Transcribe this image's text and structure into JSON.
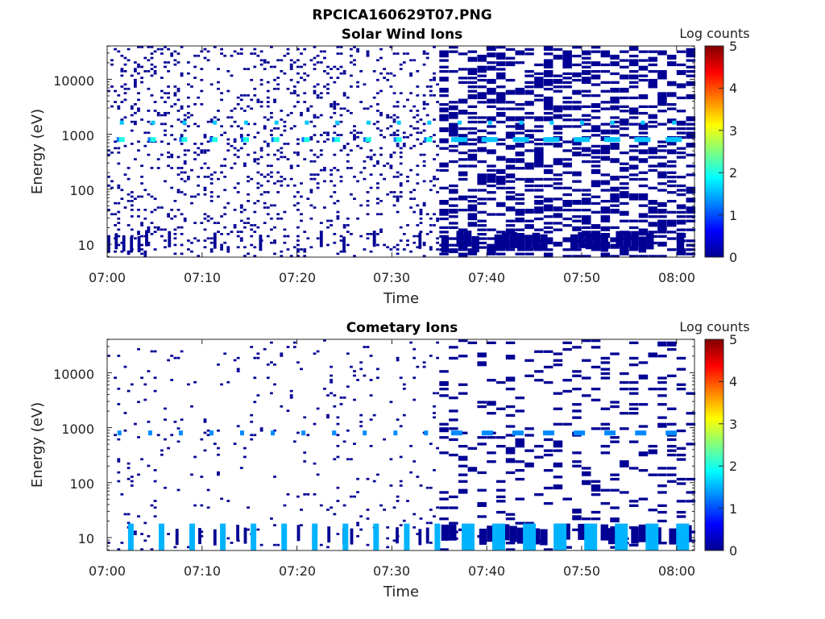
{
  "figure": {
    "filename": "RPCICA160629T07.PNG"
  },
  "colorbar": {
    "label": "Log counts",
    "ticks": [
      "0",
      "1",
      "2",
      "3",
      "4",
      "5"
    ],
    "range": [
      0,
      5
    ],
    "colormap": "jet"
  },
  "chart_data": [
    {
      "type": "heatmap",
      "title": "Solar Wind Ions",
      "xlabel": "Time",
      "ylabel": "Energy (eV)",
      "x_ticks": [
        "07:00",
        "07:10",
        "07:20",
        "07:30",
        "07:40",
        "07:50",
        "08:00"
      ],
      "y_ticks": [
        "10",
        "100",
        "1000",
        "10000"
      ],
      "xlim": [
        "07:00",
        "08:02"
      ],
      "ylim": [
        6,
        40000
      ],
      "yscale": "log",
      "colorbar_label": "Log counts",
      "color_range": [
        0,
        5
      ],
      "features": {
        "sw_peak_energy_eV": 800,
        "sw_secondary_peak_energy_eV": 1600,
        "sw_peak_log_counts": 2.0,
        "sw_peak_times": [
          "07:01.5",
          "07:04.8",
          "07:08.1",
          "07:11.3",
          "07:14.6",
          "07:17.8",
          "07:21.0",
          "07:24.2",
          "07:27.5",
          "07:30.7",
          "07:33.9",
          "07:37.1",
          "07:40.3",
          "07:43.6",
          "07:46.8",
          "07:50.0",
          "07:53.2",
          "07:56.4",
          "07:59.7"
        ],
        "background_log_counts": 0.1,
        "dense_after": "07:35"
      }
    },
    {
      "type": "heatmap",
      "title": "Cometary Ions",
      "xlabel": "Time",
      "ylabel": "Energy (eV)",
      "x_ticks": [
        "07:00",
        "07:10",
        "07:20",
        "07:30",
        "07:40",
        "07:50",
        "08:00"
      ],
      "y_ticks": [
        "10",
        "100",
        "1000",
        "10000"
      ],
      "xlim": [
        "07:00",
        "08:02"
      ],
      "ylim": [
        6,
        40000
      ],
      "yscale": "log",
      "colorbar_label": "Log counts",
      "color_range": [
        0,
        5
      ],
      "features": {
        "line_energy_eV": 800,
        "line_log_counts": 1.3,
        "low_energy_band_eV": [
          6,
          18
        ],
        "low_energy_log_counts": 1.5,
        "background_log_counts": 0.1,
        "dense_after": "07:35"
      }
    }
  ]
}
